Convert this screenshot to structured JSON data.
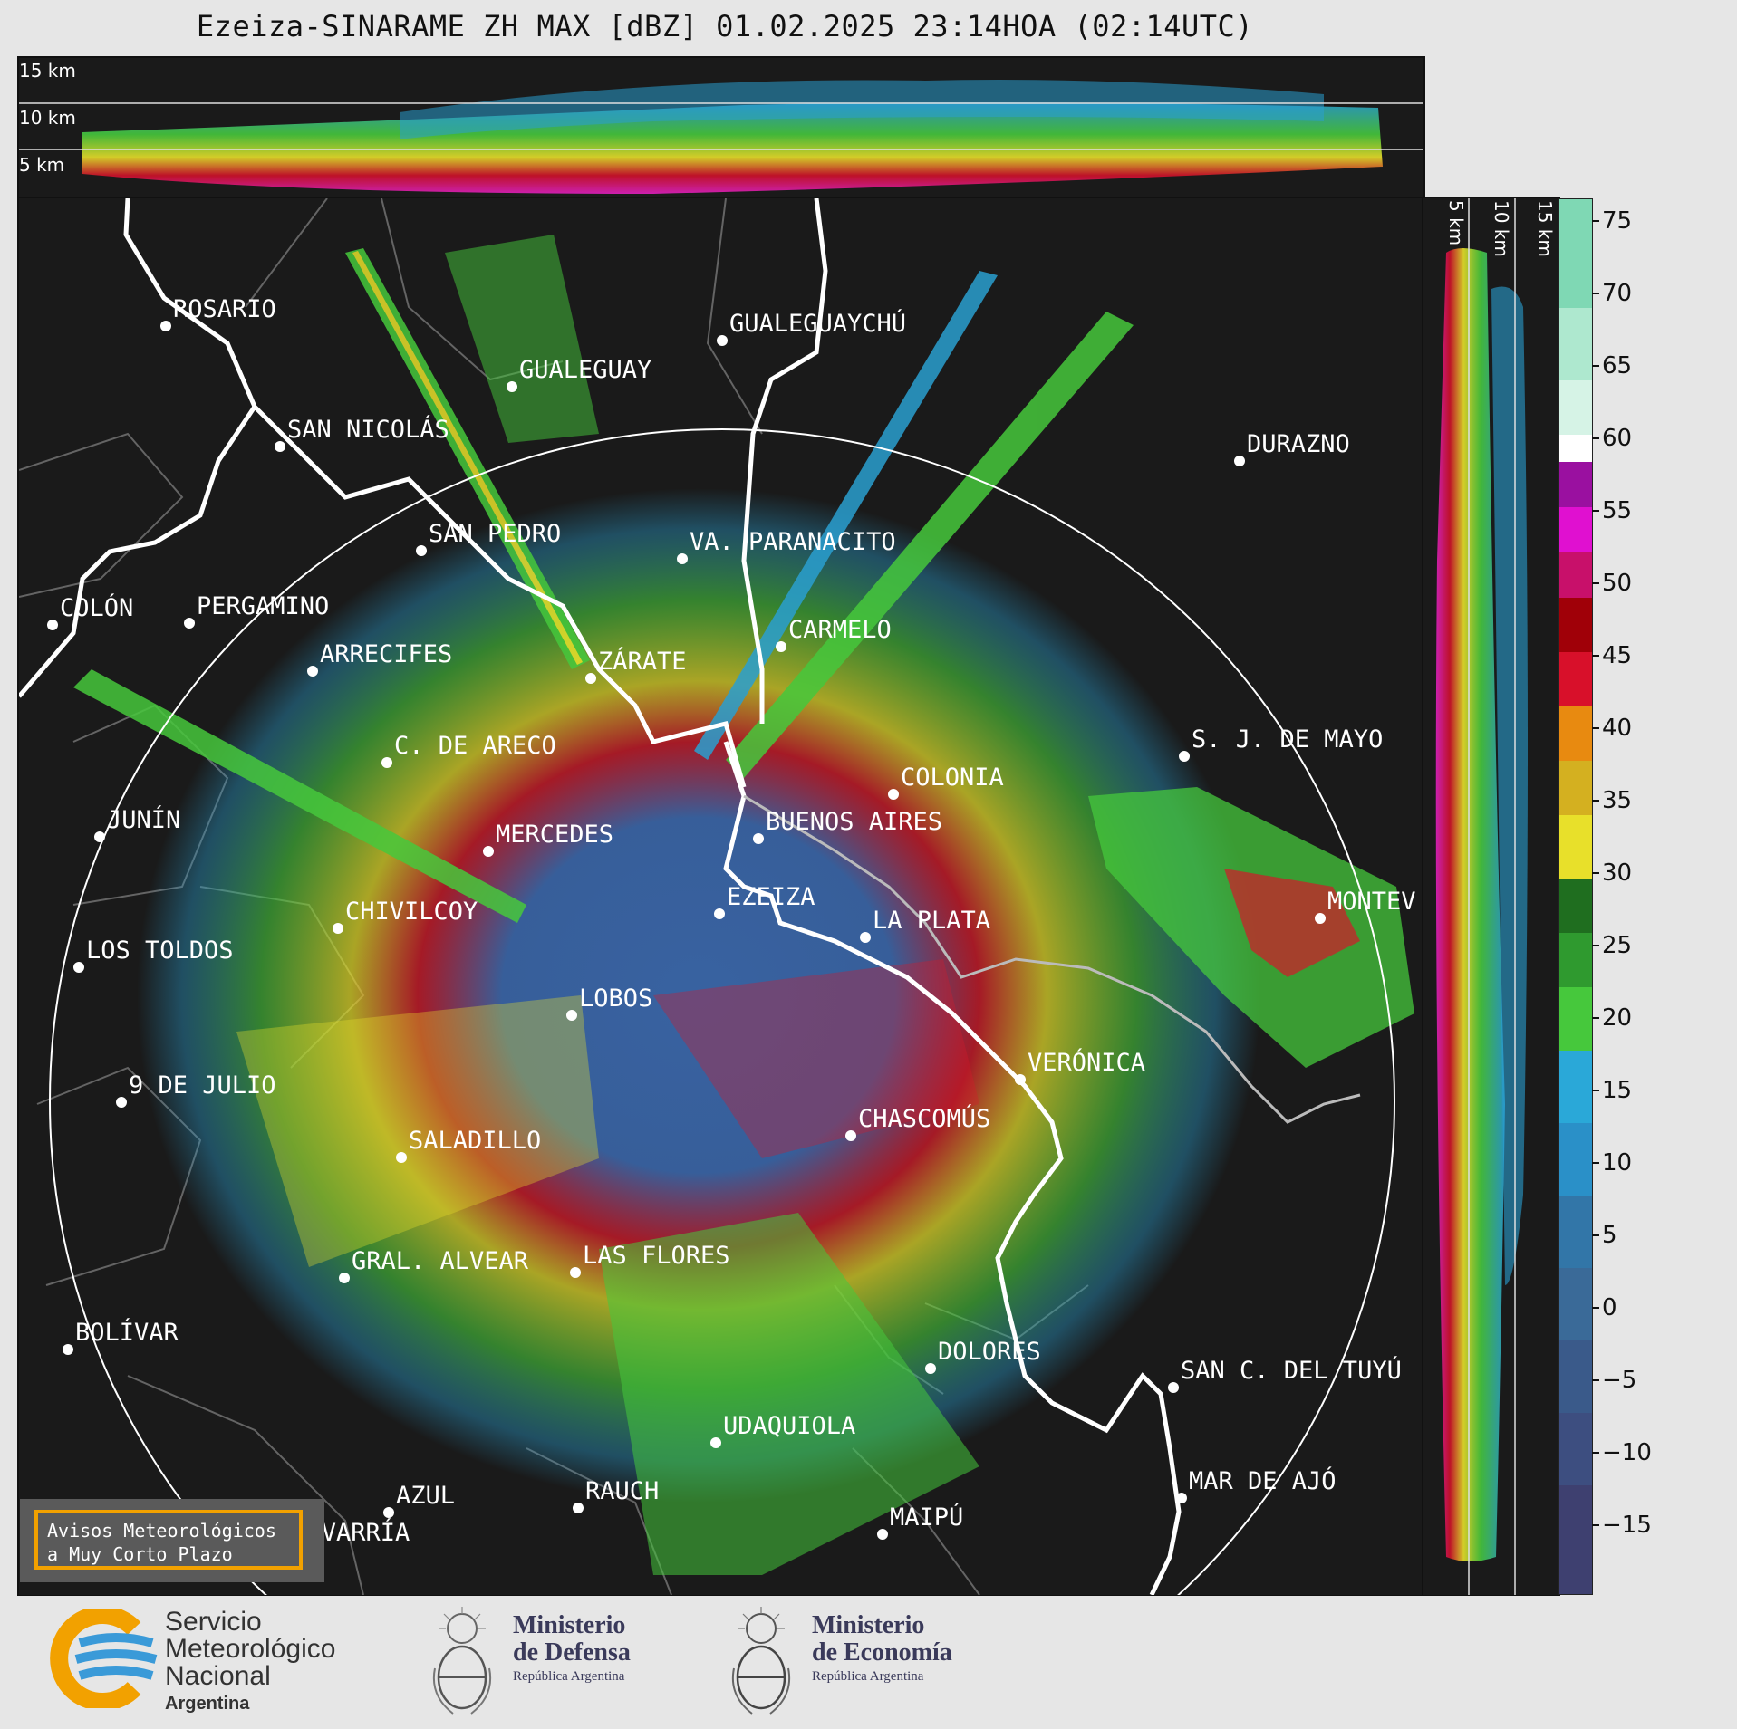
{
  "title": "Ezeiza-SINARAME ZH MAX [dBZ] 01.02.2025 23:14HOA (02:14UTC)",
  "top_altitude_labels": [
    "15 km",
    "10 km",
    "5 km"
  ],
  "right_altitude_labels": [
    "5 km",
    "10 km",
    "15 km"
  ],
  "colorbar": {
    "ticks": [
      "75",
      "70",
      "65",
      "60",
      "55",
      "50",
      "45",
      "40",
      "35",
      "30",
      "25",
      "20",
      "15",
      "10",
      "5",
      "0",
      "−5",
      "−10",
      "−15"
    ]
  },
  "cities": [
    {
      "name": "ROSARIO"
    },
    {
      "name": "GUALEGUAYCHÚ"
    },
    {
      "name": "GUALEGUAY"
    },
    {
      "name": "SAN NICOLÁS"
    },
    {
      "name": "DURAZNO"
    },
    {
      "name": "SAN PEDRO"
    },
    {
      "name": "VA. PARANACITO"
    },
    {
      "name": "COLÓN"
    },
    {
      "name": "PERGAMINO"
    },
    {
      "name": "CARMELO"
    },
    {
      "name": "ARRECIFES"
    },
    {
      "name": "ZÁRATE"
    },
    {
      "name": "S. J. DE MAYO"
    },
    {
      "name": "C. DE ARECO"
    },
    {
      "name": "COLONIA"
    },
    {
      "name": "JUNÍN"
    },
    {
      "name": "BUENOS AIRES"
    },
    {
      "name": "MERCEDES"
    },
    {
      "name": "EZEIZA"
    },
    {
      "name": "MONTEV"
    },
    {
      "name": "CHIVILCOY"
    },
    {
      "name": "LA PLATA"
    },
    {
      "name": "LOS TOLDOS"
    },
    {
      "name": "LOBOS"
    },
    {
      "name": "VERÓNICA"
    },
    {
      "name": "9 DE JULIO"
    },
    {
      "name": "CHASCOMÚS"
    },
    {
      "name": "SALADILLO"
    },
    {
      "name": "GRAL. ALVEAR"
    },
    {
      "name": "LAS FLORES"
    },
    {
      "name": "BOLÍVAR"
    },
    {
      "name": "DOLORES"
    },
    {
      "name": "SAN C. DEL TUYÚ"
    },
    {
      "name": "UDAQUIOLA"
    },
    {
      "name": "MAR DE AJÓ"
    },
    {
      "name": "AZUL"
    },
    {
      "name": "RAUCH"
    },
    {
      "name": "OLAVARRÍA"
    },
    {
      "name": "MAIPÚ"
    }
  ],
  "avisos": {
    "line1": "Avisos Meteorológicos",
    "line2": "a Muy Corto Plazo"
  },
  "footer": {
    "smn": {
      "line1": "Servicio",
      "line2": "Meteorológico",
      "line3": "Nacional",
      "line4": "Argentina"
    },
    "defensa": {
      "line1": "Ministerio",
      "line2": "de Defensa",
      "line3": "República Argentina"
    },
    "economia": {
      "line1": "Ministerio",
      "line2": "de Economía",
      "line3": "República Argentina"
    }
  }
}
